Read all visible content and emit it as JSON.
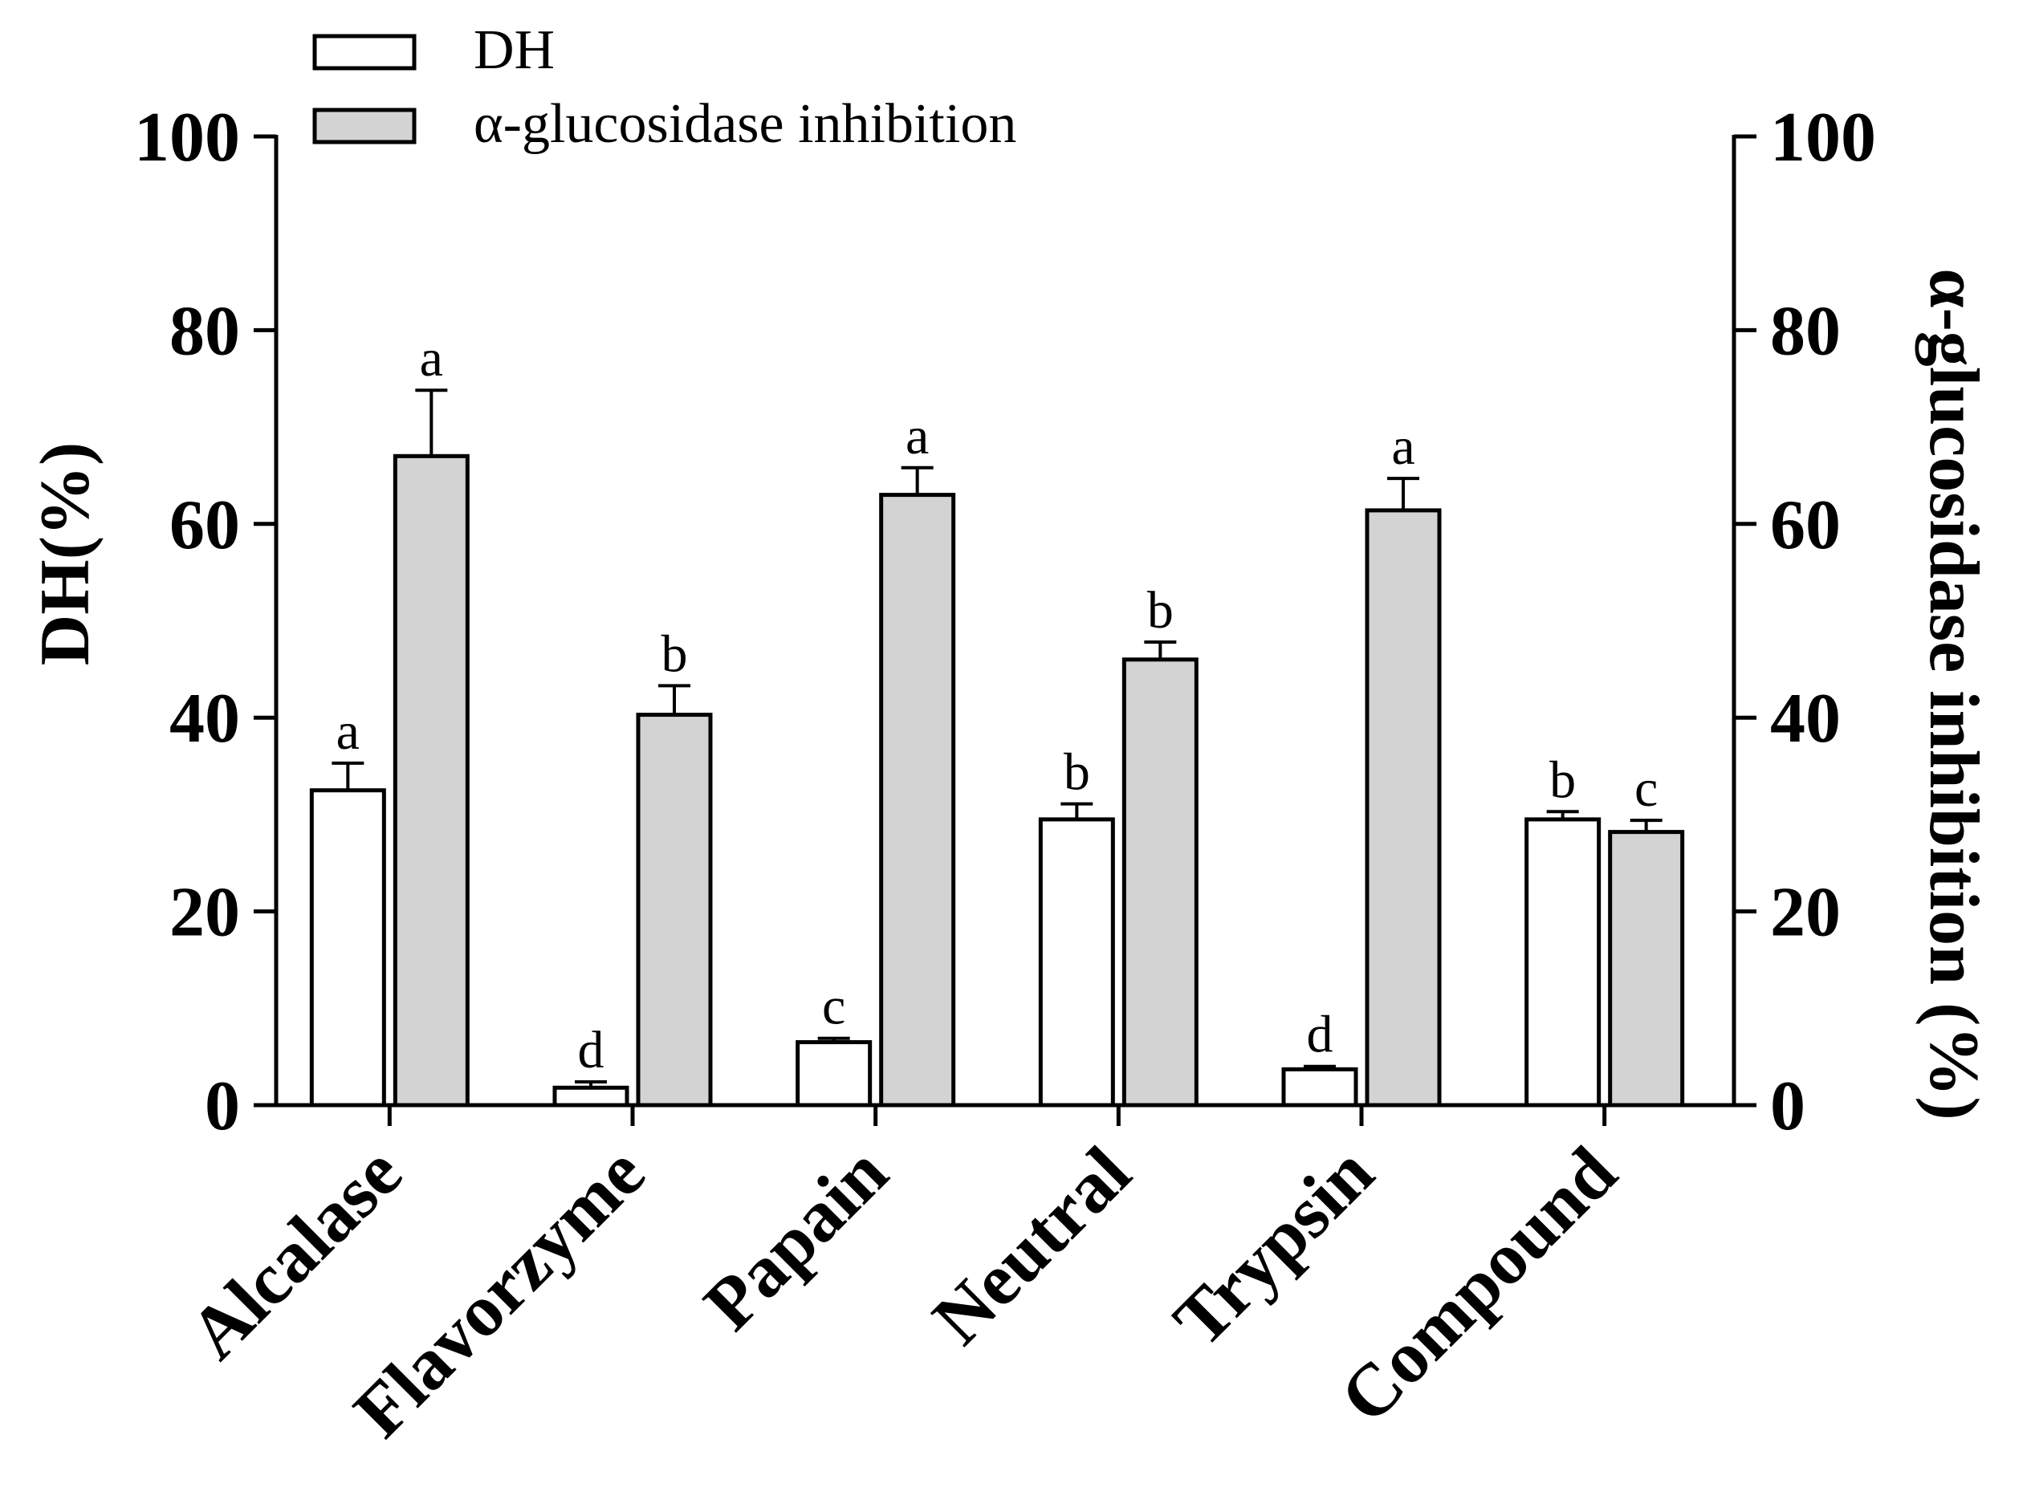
{
  "chart_data": {
    "type": "bar",
    "categories": [
      "Alcalase",
      "Flavorzyme",
      "Papain",
      "Neutral",
      "Trypsin",
      "Compound"
    ],
    "series": [
      {
        "name": "DH",
        "axis": "left",
        "color": "#ffffff",
        "values": [
          32.5,
          1.8,
          6.5,
          29.5,
          3.7,
          29.5
        ],
        "errors": [
          2.8,
          0.6,
          0.4,
          1.6,
          0.3,
          0.8
        ],
        "labels": [
          "a",
          "d",
          "c",
          "b",
          "d",
          "b"
        ]
      },
      {
        "name": "α-glucosidase inhibition",
        "axis": "right",
        "color": "#d3d3d3",
        "values": [
          67.0,
          40.3,
          63.0,
          46.0,
          61.4,
          28.2
        ],
        "errors": [
          6.8,
          3.0,
          2.8,
          1.8,
          3.3,
          1.2
        ],
        "labels": [
          "a",
          "b",
          "a",
          "b",
          "a",
          "c"
        ]
      }
    ],
    "ylabel": "DH(%)",
    "y2label": "α-glucosidase inhibition (%)",
    "ylim": [
      0,
      100
    ],
    "y2lim": [
      0,
      100
    ],
    "yticks": [
      "0",
      "20",
      "40",
      "60",
      "80",
      "100"
    ],
    "legend_position": "top-left"
  }
}
